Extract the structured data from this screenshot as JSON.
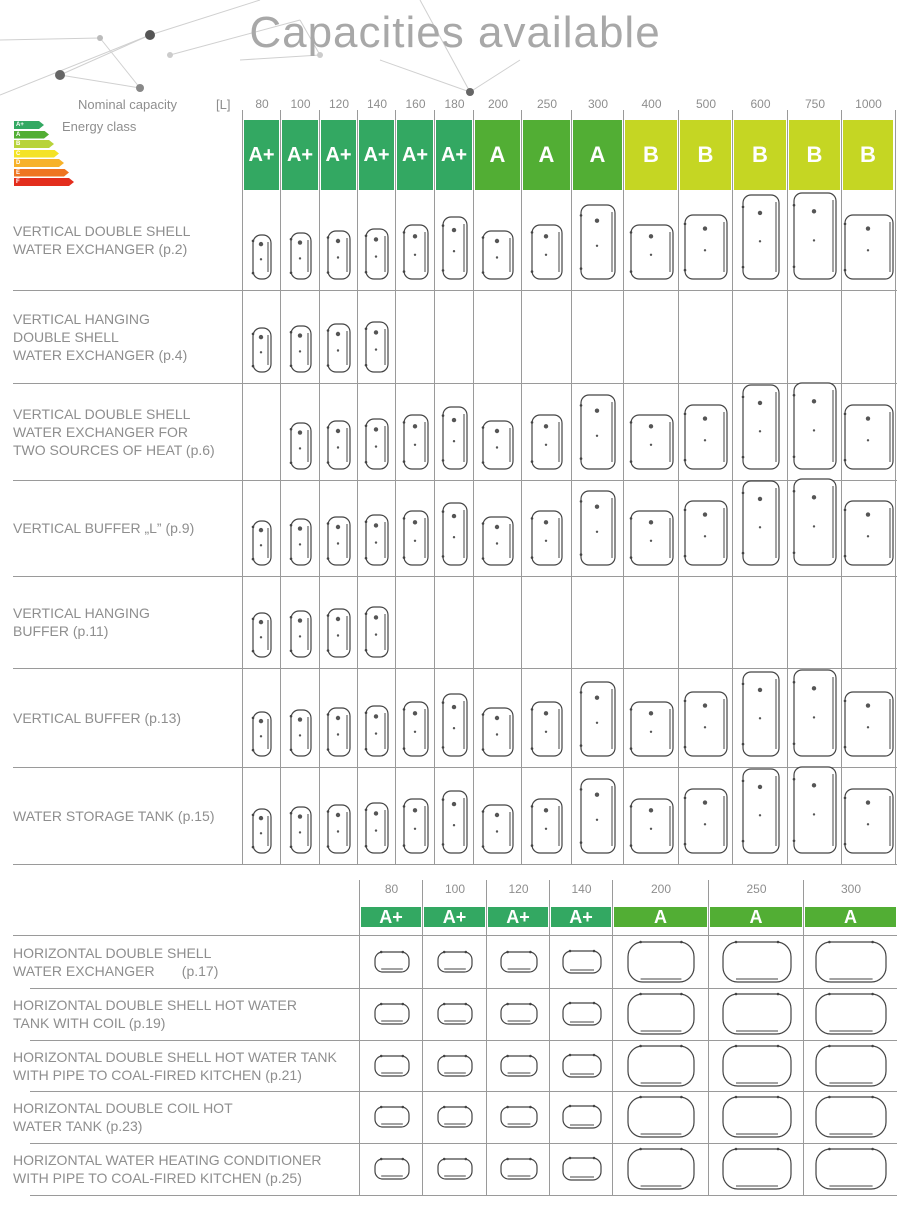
{
  "title": "Capacities available",
  "colors": {
    "A+": "#33a862",
    "A": "#52ae34",
    "B": "#c5d623"
  },
  "legend": {
    "nominal_capacity": "Nominal capacity",
    "unit": "[L]",
    "energy_class": "Energy class",
    "scale": [
      {
        "label": "A+",
        "color": "#33a862"
      },
      {
        "label": "A",
        "color": "#52ae34"
      },
      {
        "label": "B",
        "color": "#b8d33a"
      },
      {
        "label": "C",
        "color": "#f4e326"
      },
      {
        "label": "D",
        "color": "#f7b22a"
      },
      {
        "label": "E",
        "color": "#ee7522"
      },
      {
        "label": "F",
        "color": "#e32d1d"
      }
    ]
  },
  "vertical": {
    "capacities": [
      "80",
      "100",
      "120",
      "140",
      "160",
      "180",
      "200",
      "250",
      "300",
      "400",
      "500",
      "600",
      "750",
      "1000"
    ],
    "classes": [
      "A+",
      "A+",
      "A+",
      "A+",
      "A+",
      "A+",
      "A",
      "A",
      "A",
      "B",
      "B",
      "B",
      "B",
      "B"
    ],
    "rows": [
      {
        "label": "VERTICAL DOUBLE SHELL\nWATER EXCHANGER (p.2)",
        "available": [
          1,
          1,
          1,
          1,
          1,
          1,
          1,
          1,
          1,
          1,
          1,
          1,
          1,
          1
        ]
      },
      {
        "label": "VERTICAL HANGING\nDOUBLE SHELL\nWATER EXCHANGER (p.4)",
        "available": [
          1,
          1,
          1,
          1,
          0,
          0,
          0,
          0,
          0,
          0,
          0,
          0,
          0,
          0
        ]
      },
      {
        "label": "VERTICAL DOUBLE SHELL\nWATER EXCHANGER FOR\nTWO SOURCES OF HEAT  (p.6)",
        "available": [
          0,
          1,
          1,
          1,
          1,
          1,
          1,
          1,
          1,
          1,
          1,
          1,
          1,
          1
        ]
      },
      {
        "label": "VERTICAL BUFFER „L” (p.9)",
        "available": [
          1,
          1,
          1,
          1,
          1,
          1,
          1,
          1,
          1,
          1,
          1,
          1,
          1,
          1
        ]
      },
      {
        "label": "VERTICAL HANGING\nBUFFER (p.11)",
        "available": [
          1,
          1,
          1,
          1,
          0,
          0,
          0,
          0,
          0,
          0,
          0,
          0,
          0,
          0
        ]
      },
      {
        "label": "VERTICAL BUFFER (p.13)",
        "available": [
          1,
          1,
          1,
          1,
          1,
          1,
          1,
          1,
          1,
          1,
          1,
          1,
          1,
          1
        ]
      },
      {
        "label": "WATER STORAGE TANK (p.15)",
        "available": [
          1,
          1,
          1,
          1,
          1,
          1,
          1,
          1,
          1,
          1,
          1,
          1,
          1,
          1
        ]
      }
    ]
  },
  "horizontal": {
    "capacities": [
      "80",
      "100",
      "120",
      "140",
      "200",
      "250",
      "300"
    ],
    "classes": [
      "A+",
      "A+",
      "A+",
      "A+",
      "A",
      "A",
      "A"
    ],
    "rows": [
      {
        "label": "HORIZONTAL DOUBLE SHELL\nWATER EXCHANGER       (p.17)",
        "available": [
          1,
          1,
          1,
          1,
          1,
          1,
          1
        ]
      },
      {
        "label": "HORIZONTAL DOUBLE SHELL HOT WATER\nTANK WITH COIL (p.19)",
        "available": [
          1,
          1,
          1,
          1,
          1,
          1,
          1
        ]
      },
      {
        "label": "HORIZONTAL DOUBLE SHELL HOT WATER TANK\nWITH PIPE TO COAL-FIRED KITCHEN (p.21)",
        "available": [
          1,
          1,
          1,
          1,
          1,
          1,
          1
        ]
      },
      {
        "label": "HORIZONTAL DOUBLE COIL HOT\nWATER TANK (p.23)",
        "available": [
          1,
          1,
          1,
          1,
          1,
          1,
          1
        ]
      },
      {
        "label": "HORIZONTAL WATER HEATING CONDITIONER\nWITH PIPE TO COAL-FIRED KITCHEN (p.25)",
        "available": [
          1,
          1,
          1,
          1,
          1,
          1,
          1
        ]
      }
    ]
  }
}
